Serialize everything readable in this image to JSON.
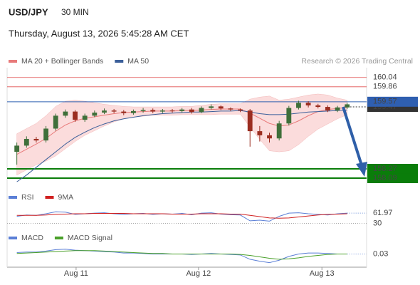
{
  "header": {
    "symbol": "USD/JPY",
    "interval": "30 MIN",
    "datetime": "Thursday, August 13, 2026 5:45:28 AM CET"
  },
  "chart_data": [
    {
      "type": "candlestick",
      "source": "Research © 2026 Trading Central",
      "xlim": [
        -1,
        36
      ],
      "ylim": [
        157.98,
        160.23
      ],
      "open": [
        158.6,
        158.72,
        158.85,
        158.82,
        159.05,
        159.3,
        159.38,
        159.22,
        159.3,
        159.36,
        159.4,
        159.38,
        159.35,
        159.39,
        159.41,
        159.38,
        159.4,
        159.39,
        159.42,
        159.37,
        159.45,
        159.48,
        159.44,
        159.42,
        159.4,
        159.0,
        158.92,
        158.86,
        159.15,
        159.45,
        159.55,
        159.5,
        159.47,
        159.4,
        159.46
      ],
      "high": [
        158.78,
        158.9,
        158.89,
        159.1,
        159.34,
        159.42,
        159.41,
        159.34,
        159.4,
        159.44,
        159.43,
        159.41,
        159.42,
        159.45,
        159.44,
        159.43,
        159.43,
        159.45,
        159.45,
        159.48,
        159.52,
        159.5,
        159.46,
        159.44,
        159.43,
        159.1,
        158.97,
        159.2,
        159.49,
        159.59,
        159.58,
        159.53,
        159.5,
        159.49,
        159.55
      ],
      "low": [
        158.35,
        158.68,
        158.78,
        158.78,
        159.01,
        159.26,
        159.18,
        159.18,
        159.27,
        159.33,
        159.35,
        159.31,
        159.32,
        159.36,
        159.35,
        159.35,
        159.36,
        159.36,
        159.34,
        159.35,
        159.42,
        159.41,
        159.39,
        159.37,
        158.7,
        158.8,
        158.78,
        158.82,
        159.11,
        159.42,
        159.46,
        159.44,
        159.37,
        159.37,
        159.43
      ],
      "close": [
        158.72,
        158.85,
        158.82,
        159.05,
        159.3,
        159.38,
        159.22,
        159.3,
        159.36,
        159.4,
        159.38,
        159.35,
        159.39,
        159.41,
        159.38,
        159.4,
        159.39,
        159.42,
        159.37,
        159.45,
        159.48,
        159.44,
        159.42,
        159.4,
        159.0,
        158.92,
        158.86,
        159.15,
        159.45,
        159.55,
        159.5,
        159.47,
        159.4,
        159.46,
        159.52
      ],
      "up_color": "#3f6f3a",
      "down_color": "#9b2d20",
      "band": {
        "color": "#fbdcdc",
        "upper": [
          158.95,
          159.05,
          159.15,
          159.3,
          159.48,
          159.58,
          159.6,
          159.58,
          159.55,
          159.52,
          159.5,
          159.48,
          159.47,
          159.47,
          159.47,
          159.47,
          159.47,
          159.48,
          159.48,
          159.5,
          159.52,
          159.53,
          159.53,
          159.53,
          159.62,
          159.66,
          159.68,
          159.6,
          159.62,
          159.66,
          159.7,
          159.72,
          159.7,
          159.64,
          159.6
        ],
        "lower": [
          158.15,
          158.25,
          158.35,
          158.42,
          158.52,
          158.66,
          158.8,
          158.92,
          159.01,
          159.1,
          159.18,
          159.24,
          159.27,
          159.29,
          159.31,
          159.31,
          159.31,
          159.32,
          159.32,
          159.32,
          159.32,
          159.33,
          159.33,
          159.33,
          159.08,
          158.84,
          158.62,
          158.6,
          158.62,
          158.74,
          158.9,
          159.04,
          159.14,
          159.24,
          159.32
        ]
      },
      "series": [
        {
          "name": "MA 20 + Bollinger Bands",
          "color": "#e87a7a",
          "values": [
            158.55,
            158.65,
            158.75,
            158.86,
            159.0,
            159.12,
            159.2,
            159.25,
            159.28,
            159.31,
            159.34,
            159.36,
            159.37,
            159.38,
            159.39,
            159.39,
            159.39,
            159.4,
            159.4,
            159.41,
            159.42,
            159.43,
            159.43,
            159.43,
            159.35,
            159.25,
            159.15,
            159.1,
            159.12,
            159.2,
            159.3,
            159.38,
            159.42,
            159.44,
            159.46
          ]
        },
        {
          "name": "MA 50",
          "color": "#3b5f9a",
          "values": [
            158.02,
            158.15,
            158.3,
            158.45,
            158.6,
            158.75,
            158.88,
            158.98,
            159.07,
            159.14,
            159.2,
            159.24,
            159.27,
            159.3,
            159.32,
            159.34,
            159.35,
            159.36,
            159.37,
            159.37,
            159.38,
            159.39,
            159.39,
            159.4,
            159.37,
            159.34,
            159.32,
            159.32,
            159.33,
            159.35,
            159.37,
            159.38,
            159.39,
            159.4,
            159.41
          ]
        }
      ],
      "levels": [
        {
          "value": 160.04,
          "color": "#e05050",
          "box": false,
          "line": "solid",
          "width": 0.8
        },
        {
          "value": 159.86,
          "color": "#e05050",
          "box": false,
          "line": "solid",
          "width": 0.8
        },
        {
          "value": 159.47,
          "color": "#333333",
          "box": true,
          "line": "dotted",
          "width": 1
        },
        {
          "value": 159.57,
          "color": "#2f5fb0",
          "box": true,
          "line": "solid",
          "width": 1
        },
        {
          "value": 158.27,
          "color": "#0a7d0a",
          "box": true,
          "line": "solid",
          "width": 2
        },
        {
          "value": 158.09,
          "color": "#0a7d0a",
          "box": true,
          "line": "solid",
          "width": 2
        }
      ]
    },
    {
      "type": "line",
      "xlim": [
        -1,
        36
      ],
      "ylim": [
        20,
        80
      ],
      "yticks": [
        30
      ],
      "series": [
        {
          "name": "RSI",
          "color": "#5b7fd6",
          "values": [
            52,
            56,
            55,
            60,
            66,
            65,
            58,
            60,
            62,
            63,
            60,
            58,
            60,
            61,
            58,
            60,
            59,
            61,
            57,
            62,
            63,
            59,
            57,
            56,
            38,
            40,
            37,
            52,
            62,
            63,
            60,
            58,
            56,
            60,
            61.97
          ]
        },
        {
          "name": "9MA",
          "color": "#d02020",
          "values": [
            55,
            55,
            55,
            56,
            58,
            59,
            60,
            60,
            61,
            61,
            61,
            61,
            60,
            60,
            60,
            60,
            59,
            59,
            59,
            60,
            60,
            60,
            59,
            59,
            55,
            51,
            47,
            46,
            47,
            50,
            53,
            56,
            58,
            59,
            60
          ]
        }
      ]
    },
    {
      "type": "line",
      "xlim": [
        -1,
        36
      ],
      "ylim": [
        -0.2,
        0.2
      ],
      "xticks": [
        {
          "value": 6.1,
          "label": "Aug 11"
        },
        {
          "value": 18.7,
          "label": "Aug 12"
        },
        {
          "value": 31.4,
          "label": "Aug 13"
        }
      ],
      "series": [
        {
          "name": "MACD",
          "color": "#5b7fd6",
          "values": [
            0.06,
            0.07,
            0.07,
            0.09,
            0.12,
            0.13,
            0.11,
            0.1,
            0.09,
            0.08,
            0.07,
            0.05,
            0.05,
            0.04,
            0.03,
            0.03,
            0.03,
            0.03,
            0.02,
            0.03,
            0.04,
            0.03,
            0.02,
            0.01,
            -0.08,
            -0.12,
            -0.15,
            -0.1,
            -0.02,
            0.03,
            0.05,
            0.05,
            0.04,
            0.03,
            0.03
          ]
        },
        {
          "name": "MACD Signal",
          "color": "#4aa02a",
          "values": [
            0.04,
            0.05,
            0.06,
            0.07,
            0.08,
            0.09,
            0.1,
            0.1,
            0.1,
            0.09,
            0.08,
            0.07,
            0.06,
            0.05,
            0.04,
            0.04,
            0.03,
            0.03,
            0.03,
            0.03,
            0.03,
            0.03,
            0.03,
            0.02,
            0,
            -0.03,
            -0.06,
            -0.08,
            -0.07,
            -0.05,
            -0.02,
            0.0,
            0.02,
            0.03,
            0.03
          ]
        }
      ]
    }
  ]
}
